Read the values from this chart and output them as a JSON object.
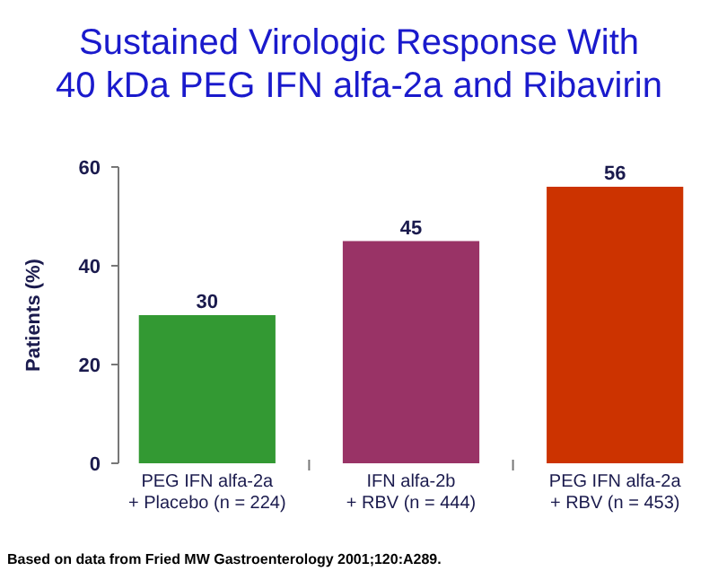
{
  "chart_data": {
    "type": "bar",
    "title": "Sustained Virologic Response With\n40 kDa PEG IFN alfa-2a and Ribavirin",
    "ylabel": "Patients (%)",
    "categories": [
      "PEG IFN alfa-2a\n+ Placebo (n = 224)",
      "IFN alfa-2b\n+ RBV (n = 444)",
      "PEG IFN alfa-2a\n+ RBV (n = 453)"
    ],
    "values": [
      30,
      45,
      56
    ],
    "colors": [
      "#339933",
      "#993366",
      "#cc3300"
    ],
    "ylim": [
      0,
      60
    ],
    "yticks": [
      0,
      20,
      40,
      60
    ],
    "data_labels": true,
    "annotations": [
      "Based on data from Fried MW Gastroenterology 2001;120:A289."
    ]
  }
}
